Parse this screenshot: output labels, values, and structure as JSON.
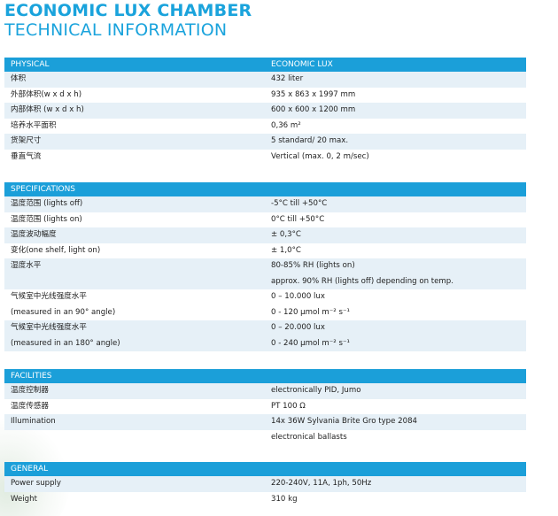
{
  "header": {
    "title": "ECONOMIC LUX CHAMBER",
    "subtitle": "TECHNICAL INFORMATION"
  },
  "sections": {
    "physical": {
      "label": "PHYSICAL",
      "column_label": "ECONOMIC LUX",
      "rows": [
        {
          "label": "体积",
          "value": "432 liter"
        },
        {
          "label": "外部体积(w x d x h)",
          "value": "935 x 863 x 1997 mm"
        },
        {
          "label": "内部体积 (w x d x h)",
          "value": "600 x 600 x 1200 mm"
        },
        {
          "label": "培养水平面积",
          "value": "0,36 m²"
        },
        {
          "label": "货架尺寸",
          "value": "5 standard/ 20 max."
        },
        {
          "label": "垂直气流",
          "value": "Vertical (max. 0, 2 m/sec)"
        }
      ]
    },
    "specifications": {
      "label": "SPECIFICATIONS",
      "rows": [
        {
          "label": "温度范围 (lights off)",
          "value": "-5°C till +50°C"
        },
        {
          "label": "温度范围 (lights on)",
          "value": "0°C till +50°C"
        },
        {
          "label": "温度波动幅度",
          "value": "± 0,3°C"
        },
        {
          "label": "变化(one shelf, light on)",
          "value": "± 1,0°C"
        },
        {
          "label": "湿度水平",
          "value": "80-85% RH (lights on)"
        },
        {
          "label": "",
          "value": "approx. 90% RH (lights off) depending on temp."
        },
        {
          "label": "气候室中光线强度水平",
          "value": "0 – 10.000 lux"
        },
        {
          "label": "(measured in an 90° angle)",
          "value": "0 - 120 µmol m⁻² s⁻¹"
        },
        {
          "label": "气候室中光线强度水平",
          "value": "0 – 20.000 lux"
        },
        {
          "label": "(measured in an 180° angle)",
          "value": "0 - 240 µmol m⁻² s⁻¹"
        }
      ]
    },
    "facilities": {
      "label": "FACILITIES",
      "rows": [
        {
          "label": "温度控制器",
          "value": "electronically PID, Jumo"
        },
        {
          "label": "温度传感器",
          "value": "PT 100 Ω"
        },
        {
          "label": "Illumination",
          "value": "14x 36W Sylvania Brite Gro type 2084"
        },
        {
          "label": "",
          "value": "electronical ballasts"
        }
      ]
    },
    "general": {
      "label": "GENERAL",
      "rows": [
        {
          "label": "Power supply",
          "value": "220-240V, 11A, 1ph, 50Hz"
        },
        {
          "label": "Weight",
          "value": "310 kg"
        }
      ]
    }
  },
  "colors": {
    "brand_blue": "#1aa3dc",
    "header_bar": "#1b9fd9",
    "row_shade": "#e6f0f7"
  }
}
